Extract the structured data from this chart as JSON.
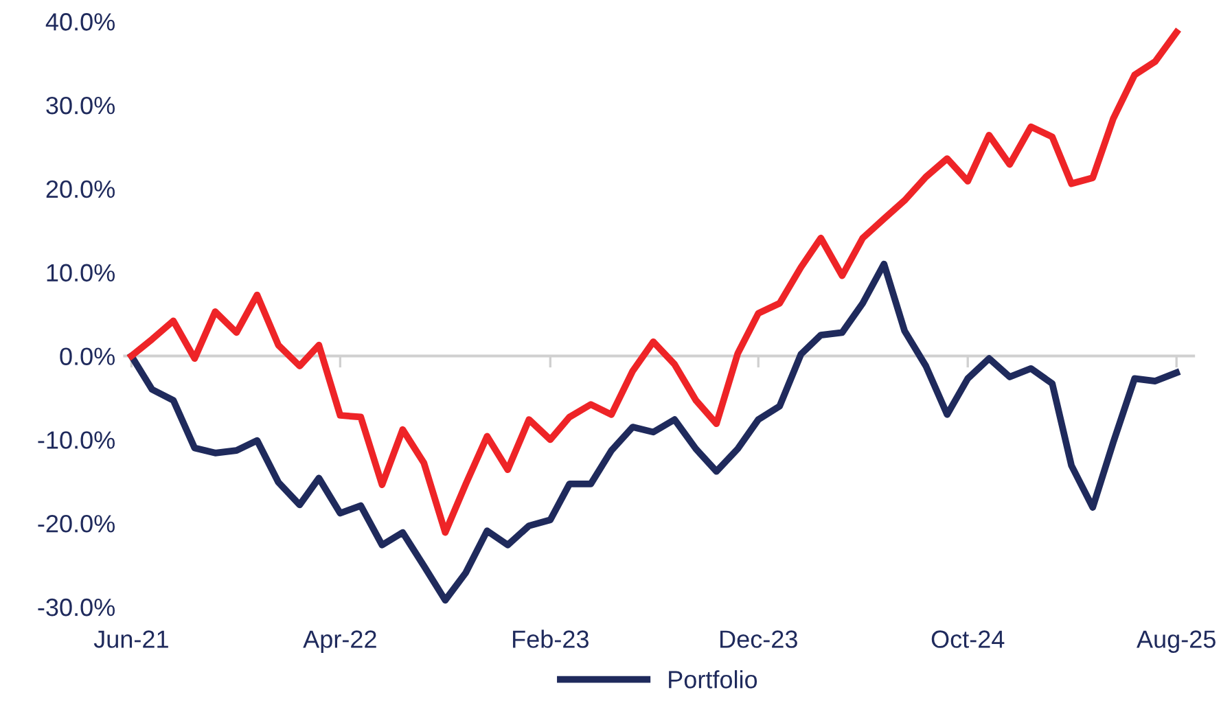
{
  "chart_data": {
    "type": "line",
    "x": [
      "2021-06",
      "2021-07",
      "2021-08",
      "2021-09",
      "2021-10",
      "2021-11",
      "2021-12",
      "2022-01",
      "2022-02",
      "2022-03",
      "2022-04",
      "2022-05",
      "2022-06",
      "2022-07",
      "2022-08",
      "2022-09",
      "2022-10",
      "2022-11",
      "2022-12",
      "2023-01",
      "2023-02",
      "2023-03",
      "2023-04",
      "2023-05",
      "2023-06",
      "2023-07",
      "2023-08",
      "2023-09",
      "2023-10",
      "2023-11",
      "2023-12",
      "2024-01",
      "2024-02",
      "2024-03",
      "2024-04",
      "2024-05",
      "2024-06",
      "2024-07",
      "2024-08",
      "2024-09",
      "2024-10",
      "2024-11",
      "2024-12",
      "2025-01",
      "2025-02",
      "2025-03",
      "2025-04",
      "2025-05",
      "2025-06",
      "2025-07",
      "2025-08"
    ],
    "series": [
      {
        "name": "Portfolio",
        "color": "#1f2a5c",
        "values": [
          0,
          -4.0,
          -5.3,
          -11.0,
          -11.6,
          -11.3,
          -10.1,
          -15.1,
          -17.8,
          -14.6,
          -18.8,
          -17.9,
          -22.6,
          -21.1,
          -25.1,
          -29.2,
          -25.9,
          -20.9,
          -22.6,
          -20.3,
          -19.6,
          -15.3,
          -15.3,
          -11.3,
          -8.5,
          -9.1,
          -7.6,
          -11.1,
          -13.8,
          -11.1,
          -7.6,
          -6.0,
          0.2,
          2.5,
          2.8,
          6.3,
          11.0,
          3.0,
          -1.2,
          -7.0,
          -2.7,
          -0.3,
          -2.5,
          -1.5,
          -3.3,
          -13.1,
          -18.1,
          -10.3,
          -2.7,
          -3.0,
          -2.0
        ]
      },
      {
        "color": "#ee2427",
        "values": [
          0,
          2.0,
          4.2,
          -0.3,
          5.3,
          2.8,
          7.3,
          1.3,
          -1.2,
          1.3,
          -7.1,
          -7.3,
          -15.4,
          -8.8,
          -12.8,
          -21.1,
          -15.3,
          -9.6,
          -13.6,
          -7.6,
          -10.0,
          -7.3,
          -5.8,
          -7.0,
          -1.8,
          1.7,
          -1.0,
          -5.3,
          -8.1,
          0.3,
          5.1,
          6.3,
          10.6,
          14.1,
          9.6,
          14.1,
          16.4,
          18.6,
          21.4,
          23.6,
          20.9,
          26.4,
          22.9,
          27.4,
          26.2,
          20.6,
          21.3,
          28.4,
          33.6,
          35.2,
          38.7
        ]
      }
    ],
    "xlim": [
      "2021-05-20",
      "2025-08-28"
    ],
    "xticks": [
      {
        "value": "2021-06",
        "label": "Jun-21"
      },
      {
        "value": "2022-04",
        "label": "Apr-22"
      },
      {
        "value": "2023-02",
        "label": "Feb-23"
      },
      {
        "value": "2023-12",
        "label": "Dec-23"
      },
      {
        "value": "2024-10",
        "label": "Oct-24"
      },
      {
        "value": "2025-08",
        "label": "Aug-25"
      }
    ],
    "ylim": [
      -30,
      40
    ],
    "yticks": [
      {
        "value": -30,
        "label": "-30.0%"
      },
      {
        "value": -20,
        "label": "-20.0%"
      },
      {
        "value": -10,
        "label": "-10.0%"
      },
      {
        "value": 0,
        "label": "0.0%"
      },
      {
        "value": 10,
        "label": "10.0%"
      },
      {
        "value": 20,
        "label": "20.0%"
      },
      {
        "value": 30,
        "label": "30.0%"
      },
      {
        "value": 40,
        "label": "40.0%"
      }
    ],
    "ref_lines": [
      {
        "axis": "y",
        "value": 0,
        "color": "#d0d0d0"
      }
    ],
    "legend": "bottom",
    "marker": "none",
    "line_style": "solid"
  }
}
